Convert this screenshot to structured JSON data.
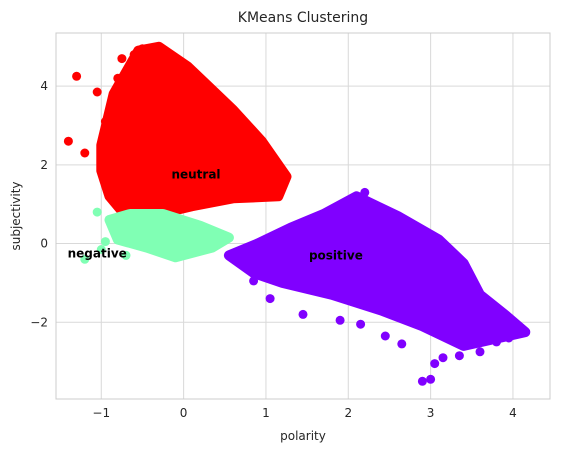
{
  "chart_data": {
    "type": "scatter",
    "title": "KMeans Clustering",
    "xlabel": "polarity",
    "ylabel": "subjectivity",
    "xlim": [
      -1.55,
      4.45
    ],
    "ylim": [
      -3.95,
      5.35
    ],
    "xticks": [
      {
        "value": -1,
        "label": "−1"
      },
      {
        "value": 0,
        "label": "0"
      },
      {
        "value": 1,
        "label": "1"
      },
      {
        "value": 2,
        "label": "2"
      },
      {
        "value": 3,
        "label": "3"
      },
      {
        "value": 4,
        "label": "4"
      }
    ],
    "yticks": [
      {
        "value": -2,
        "label": "−2"
      },
      {
        "value": 0,
        "label": "0"
      },
      {
        "value": 2,
        "label": "2"
      },
      {
        "value": 4,
        "label": "4"
      }
    ],
    "grid": true,
    "series": [
      {
        "color": "#ff0000",
        "region": [
          [
            -1.0,
            1.85
          ],
          [
            -1.0,
            2.5
          ],
          [
            -0.85,
            3.8
          ],
          [
            -0.55,
            4.9
          ],
          [
            -0.3,
            5.0
          ],
          [
            0.05,
            4.5
          ],
          [
            0.3,
            4.0
          ],
          [
            0.6,
            3.4
          ],
          [
            0.95,
            2.6
          ],
          [
            1.25,
            1.7
          ],
          [
            1.15,
            1.2
          ],
          [
            0.6,
            1.15
          ],
          [
            0.1,
            0.95
          ],
          [
            -0.3,
            0.75
          ],
          [
            -0.7,
            0.7
          ],
          [
            -0.9,
            1.2
          ]
        ],
        "points": [
          [
            -1.3,
            4.25
          ],
          [
            -1.05,
            3.85
          ],
          [
            -0.8,
            4.2
          ],
          [
            -0.6,
            4.8
          ],
          [
            -0.5,
            4.95
          ],
          [
            -0.75,
            4.7
          ],
          [
            -1.4,
            2.6
          ],
          [
            -1.2,
            2.3
          ],
          [
            -1.0,
            1.85
          ],
          [
            -0.9,
            2.7
          ],
          [
            -0.95,
            3.1
          ],
          [
            -0.4,
            4.55
          ],
          [
            -0.15,
            4.4
          ],
          [
            0.2,
            4.1
          ]
        ]
      },
      {
        "color": "#80ffb4",
        "region": [
          [
            -0.9,
            0.6
          ],
          [
            -0.65,
            0.75
          ],
          [
            -0.25,
            0.75
          ],
          [
            0.2,
            0.45
          ],
          [
            0.55,
            0.15
          ],
          [
            0.35,
            -0.1
          ],
          [
            -0.1,
            -0.35
          ],
          [
            -0.45,
            -0.1
          ],
          [
            -0.8,
            0.1
          ]
        ],
        "points": [
          [
            -1.2,
            -0.4
          ],
          [
            -1.0,
            -0.15
          ],
          [
            -0.85,
            0.4
          ],
          [
            -1.05,
            0.8
          ],
          [
            -0.95,
            0.05
          ],
          [
            -0.7,
            -0.3
          ],
          [
            -0.6,
            0.3
          ]
        ]
      },
      {
        "color": "#8000ff",
        "region": [
          [
            0.55,
            -0.3
          ],
          [
            0.9,
            0.0
          ],
          [
            1.3,
            0.4
          ],
          [
            1.7,
            0.75
          ],
          [
            2.1,
            1.2
          ],
          [
            2.6,
            0.7
          ],
          [
            3.1,
            0.1
          ],
          [
            3.4,
            -0.5
          ],
          [
            3.6,
            -1.3
          ],
          [
            3.9,
            -1.8
          ],
          [
            4.15,
            -2.25
          ],
          [
            3.4,
            -2.6
          ],
          [
            2.9,
            -2.1
          ],
          [
            2.4,
            -1.7
          ],
          [
            1.8,
            -1.3
          ],
          [
            1.2,
            -1.0
          ],
          [
            0.85,
            -0.75
          ]
        ],
        "points": [
          [
            2.9,
            -3.5
          ],
          [
            3.0,
            -3.45
          ],
          [
            3.05,
            -3.05
          ],
          [
            3.15,
            -2.9
          ],
          [
            3.35,
            -2.85
          ],
          [
            2.65,
            -2.55
          ],
          [
            2.45,
            -2.35
          ],
          [
            2.15,
            -2.05
          ],
          [
            1.9,
            -1.95
          ],
          [
            1.45,
            -1.8
          ],
          [
            1.05,
            -1.4
          ],
          [
            0.85,
            -0.95
          ],
          [
            3.6,
            -2.75
          ],
          [
            3.8,
            -2.5
          ],
          [
            3.95,
            -2.4
          ],
          [
            4.15,
            -2.25
          ],
          [
            3.7,
            -1.6
          ],
          [
            2.2,
            1.3
          ]
        ]
      }
    ],
    "annotations": [
      {
        "text": "neutral",
        "x": 0.15,
        "y": 1.65
      },
      {
        "text": "negative",
        "x": -1.05,
        "y": -0.35
      },
      {
        "text": "positive",
        "x": 1.85,
        "y": -0.4
      }
    ]
  }
}
